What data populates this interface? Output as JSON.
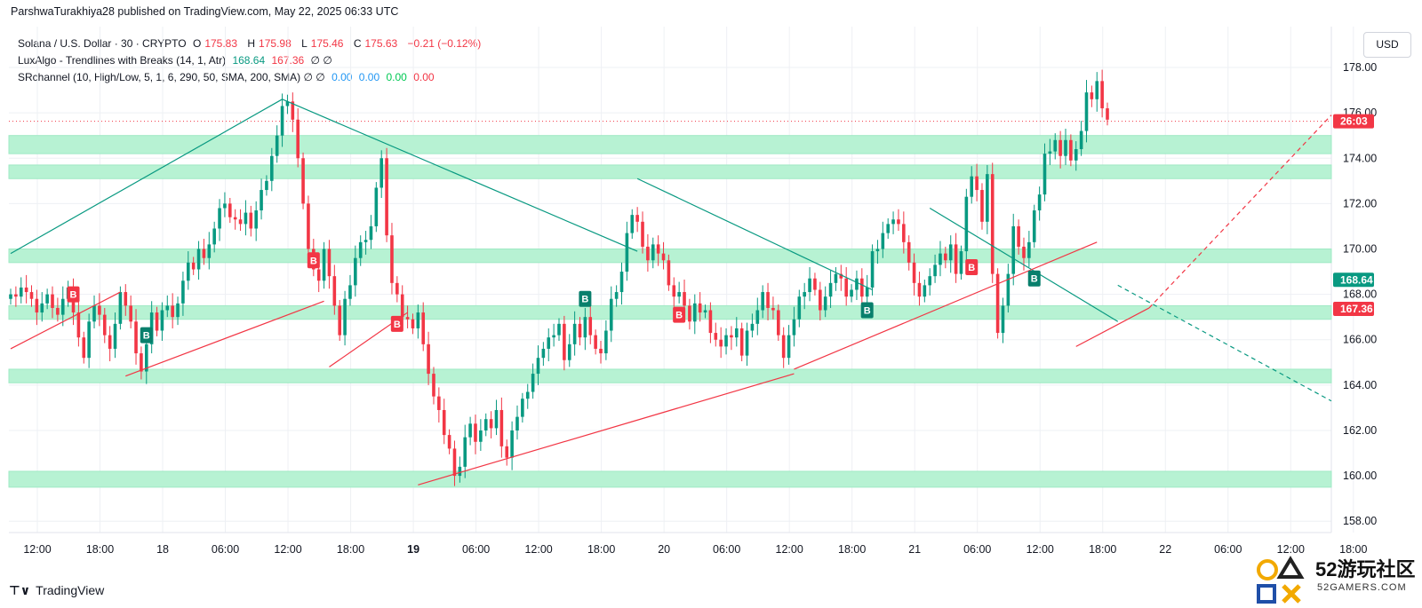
{
  "header": {
    "published_line": "ParshwaTurakhiya28 published on TradingView.com, May 22, 2025 06:33 UTC"
  },
  "legend": {
    "symbol": "Solana / U.S. Dollar · 30 · CRYPTO",
    "o_label": "O",
    "o_value": "175.83",
    "h_label": "H",
    "h_value": "175.98",
    "l_label": "L",
    "l_value": "175.46",
    "c_label": "C",
    "c_value": "175.63",
    "change": "−0.21 (−0.12%)",
    "indicator1_name": "LuxAlgo - Trendlines with Breaks (14, 1, Atr)",
    "indicator1_v1": "168.64",
    "indicator1_v2": "167.36",
    "indicator1_tail": "∅ ∅",
    "indicator2_name": "SRchannel (10, High/Low, 5, 1, 6, 290, 50, SMA, 200, SMA) ∅ ∅",
    "indicator2_v1": "0.00",
    "indicator2_v2": "0.00",
    "indicator2_v3": "0.00",
    "indicator2_v4": "0.00"
  },
  "currency_button": "USD",
  "footer": {
    "brand": "TradingView",
    "logo_icon": "tradingview-logo-icon"
  },
  "watermark": {
    "title": "52游玩社区",
    "sub": "52GAMERS.COM"
  },
  "colors": {
    "up": "#089981",
    "down": "#f23645",
    "zone": "#b7f2d3",
    "trend_down": "#089981",
    "trend_up": "#f23645",
    "grid": "#eef0f4"
  },
  "chart_data": {
    "type": "candlestick",
    "y_range": [
      157.5,
      179.8
    ],
    "y_ticks": [
      158,
      160,
      162,
      164,
      166,
      168,
      170,
      172,
      174,
      176,
      178
    ],
    "y_tick_labels": [
      "158.00",
      "160.00",
      "162.00",
      "164.00",
      "166.00",
      "168.00",
      "170.00",
      "172.00",
      "174.00",
      "176.00",
      "178.00"
    ],
    "x_ticks": [
      {
        "label": "12:00",
        "i": 0
      },
      {
        "label": "18:00",
        "i": 12
      },
      {
        "label": "18",
        "i": 24,
        "bold": false
      },
      {
        "label": "06:00",
        "i": 36
      },
      {
        "label": "12:00",
        "i": 48
      },
      {
        "label": "18:00",
        "i": 60
      },
      {
        "label": "19",
        "i": 72,
        "bold": true
      },
      {
        "label": "06:00",
        "i": 84
      },
      {
        "label": "12:00",
        "i": 96
      },
      {
        "label": "18:00",
        "i": 108
      },
      {
        "label": "20",
        "i": 120
      },
      {
        "label": "06:00",
        "i": 132
      },
      {
        "label": "12:00",
        "i": 144
      },
      {
        "label": "18:00",
        "i": 156
      },
      {
        "label": "21",
        "i": 168
      },
      {
        "label": "06:00",
        "i": 180
      },
      {
        "label": "12:00",
        "i": 192
      },
      {
        "label": "18:00",
        "i": 204
      },
      {
        "label": "22",
        "i": 216
      },
      {
        "label": "06:00",
        "i": 228
      },
      {
        "label": "12:00",
        "i": 240
      },
      {
        "label": "18:00",
        "i": 252
      }
    ],
    "price_labels": [
      {
        "text": "26:03",
        "value": 175.63,
        "color": "#f23645"
      },
      {
        "text": "168.64",
        "value": 168.64,
        "color": "#089981"
      },
      {
        "text": "167.36",
        "value": 167.36,
        "color": "#f23645"
      }
    ],
    "sr_zones": [
      [
        174.2,
        175.0
      ],
      [
        173.1,
        173.7
      ],
      [
        169.4,
        170.0
      ],
      [
        166.9,
        167.5
      ],
      [
        164.1,
        164.7
      ],
      [
        159.5,
        160.2
      ]
    ],
    "closes": [
      168,
      167.9,
      168.3,
      168.1,
      167.8,
      167.2,
      167.6,
      168,
      167.4,
      167.1,
      167.8,
      168.3,
      167.2,
      166.1,
      165.2,
      166.8,
      167.5,
      167.1,
      166.2,
      165.6,
      166.7,
      168.1,
      167.5,
      166.8,
      165.4,
      164.6,
      165.8,
      167.2,
      166.4,
      167.3,
      167.5,
      167,
      167.6,
      168.6,
      169.4,
      169.1,
      170,
      169.6,
      170.2,
      170.9,
      171.8,
      172,
      171.4,
      171.3,
      171.1,
      171.6,
      170.9,
      171.7,
      172.6,
      173,
      174.1,
      175,
      176.3,
      176.5,
      175.7,
      174,
      172,
      170,
      169.1,
      168.6,
      170,
      168.8,
      167.5,
      166.2,
      167.8,
      168.4,
      169.6,
      170.3,
      170.4,
      171,
      172.7,
      174,
      170.6,
      168.5,
      168,
      167,
      166.9,
      166.5,
      167.2,
      165.8,
      164.5,
      163.5,
      162.9,
      161.8,
      161.2,
      160,
      160.4,
      161.7,
      162.3,
      161.5,
      162,
      162.5,
      162.1,
      162.9,
      161.3,
      160.8,
      162,
      162.6,
      163.4,
      163.7,
      164.5,
      165.2,
      165.6,
      166.1,
      166.2,
      166.7,
      165.1,
      165.8,
      166.7,
      166.1,
      167,
      166.2,
      165.6,
      165.4,
      166.4,
      167.8,
      168.1,
      169,
      170.7,
      171.5,
      171.2,
      170.1,
      169.5,
      170.2,
      169.8,
      169.5,
      168.4,
      167.9,
      168.1,
      167.5,
      166.8,
      167.6,
      167.2,
      167.3,
      166.3,
      166,
      165.7,
      166.2,
      166.1,
      166.5,
      165.3,
      166.4,
      166.7,
      167.3,
      168.1,
      167.4,
      167.3,
      166.2,
      165.2,
      166.2,
      166.9,
      167.9,
      168.1,
      168.7,
      168.2,
      167.3,
      167.9,
      168.5,
      168.9,
      168.7,
      167.9,
      168.2,
      168.7,
      167.9,
      168.3,
      169.9,
      170,
      170.7,
      171.1,
      171.3,
      171.1,
      170.3,
      169.4,
      168.5,
      167.9,
      168.4,
      168.8,
      169.3,
      169.8,
      169.5,
      170.2,
      168.9,
      169.9,
      172.3,
      173.2,
      172.6,
      171.2,
      173.3,
      168.9,
      166.3,
      167.5,
      168.9,
      171,
      170.1,
      169.6,
      170.3,
      171.7,
      172.4,
      174.2,
      174.3,
      174.8,
      174.1,
      174.8,
      173.9,
      174.4,
      175.2,
      176.9,
      176.6,
      177.4,
      176.2,
      175.7
    ]
  }
}
